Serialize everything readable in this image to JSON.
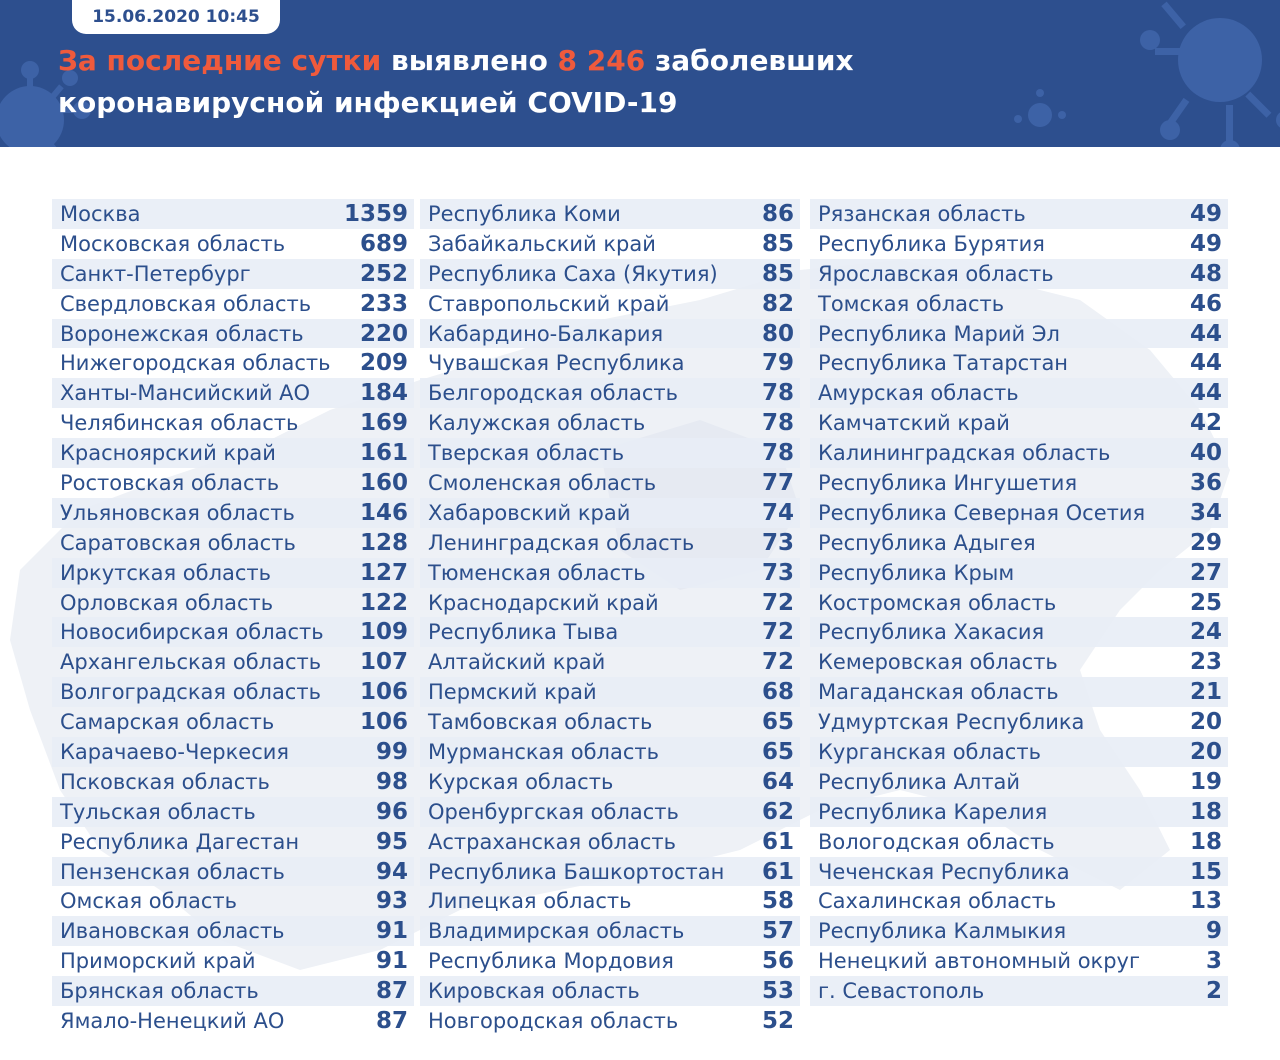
{
  "header": {
    "date": "15.06.2020 10:45",
    "title_accent_1": "За последние сутки",
    "title_part_1": " выявлено ",
    "title_accent_2": "8 246",
    "title_part_2": " заболевших",
    "title_line_2": "коронавирусной инфекцией COVID-19"
  },
  "colors": {
    "header_bg": "#2d4f8e",
    "accent": "#ef5a3c",
    "text": "#2c4f8c",
    "row_stripe": "#e8edf6"
  },
  "columns": [
    [
      {
        "name": "Москва",
        "value": "1359"
      },
      {
        "name": "Московская область",
        "value": "689"
      },
      {
        "name": "Санкт-Петербург",
        "value": "252"
      },
      {
        "name": "Свердловская область",
        "value": "233"
      },
      {
        "name": "Воронежская область",
        "value": "220"
      },
      {
        "name": "Нижегородская область",
        "value": "209"
      },
      {
        "name": "Ханты-Мансийский АО",
        "value": "184"
      },
      {
        "name": "Челябинская область",
        "value": "169"
      },
      {
        "name": "Красноярский край",
        "value": "161"
      },
      {
        "name": "Ростовская область",
        "value": "160"
      },
      {
        "name": "Ульяновская область",
        "value": "146"
      },
      {
        "name": "Саратовская область",
        "value": "128"
      },
      {
        "name": "Иркутская область",
        "value": "127"
      },
      {
        "name": "Орловская область",
        "value": "122"
      },
      {
        "name": "Новосибирская область",
        "value": "109"
      },
      {
        "name": "Архангельская область",
        "value": "107"
      },
      {
        "name": "Волгоградская область",
        "value": "106"
      },
      {
        "name": "Самарская область",
        "value": "106"
      },
      {
        "name": "Карачаево-Черкесия",
        "value": "99"
      },
      {
        "name": "Псковская область",
        "value": "98"
      },
      {
        "name": "Тульская область",
        "value": "96"
      },
      {
        "name": "Республика Дагестан",
        "value": "95"
      },
      {
        "name": "Пензенская область",
        "value": "94"
      },
      {
        "name": "Омская область",
        "value": "93"
      },
      {
        "name": "Ивановская область",
        "value": "91"
      },
      {
        "name": "Приморский край",
        "value": "91"
      },
      {
        "name": "Брянская область",
        "value": "87"
      },
      {
        "name": "Ямало-Ненецкий АО",
        "value": "87"
      }
    ],
    [
      {
        "name": "Республика Коми",
        "value": "86"
      },
      {
        "name": "Забайкальский край",
        "value": "85"
      },
      {
        "name": "Республика Саха (Якутия)",
        "value": "85"
      },
      {
        "name": "Ставропольский край",
        "value": "82"
      },
      {
        "name": "Кабардино-Балкария",
        "value": "80"
      },
      {
        "name": "Чувашская Республика",
        "value": "79"
      },
      {
        "name": "Белгородская область",
        "value": "78"
      },
      {
        "name": "Калужская область",
        "value": "78"
      },
      {
        "name": "Тверская область",
        "value": "78"
      },
      {
        "name": "Смоленская область",
        "value": "77"
      },
      {
        "name": "Хабаровский край",
        "value": "74"
      },
      {
        "name": "Ленинградская область",
        "value": "73"
      },
      {
        "name": "Тюменская область",
        "value": "73"
      },
      {
        "name": "Краснодарский край",
        "value": "72"
      },
      {
        "name": "Республика Тыва",
        "value": "72"
      },
      {
        "name": "Алтайский край",
        "value": "72"
      },
      {
        "name": "Пермский край",
        "value": "68"
      },
      {
        "name": "Тамбовская область",
        "value": "65"
      },
      {
        "name": "Мурманская область",
        "value": "65"
      },
      {
        "name": "Курская область",
        "value": "64"
      },
      {
        "name": "Оренбургская область",
        "value": "62"
      },
      {
        "name": "Астраханская область",
        "value": "61"
      },
      {
        "name": "Республика Башкортостан",
        "value": "61"
      },
      {
        "name": "Липецкая область",
        "value": "58"
      },
      {
        "name": "Владимирская область",
        "value": "57"
      },
      {
        "name": "Республика Мордовия",
        "value": "56"
      },
      {
        "name": "Кировская область",
        "value": "53"
      },
      {
        "name": "Новгородская область",
        "value": "52"
      }
    ],
    [
      {
        "name": "Рязанская область",
        "value": "49"
      },
      {
        "name": "Республика Бурятия",
        "value": "49"
      },
      {
        "name": "Ярославская область",
        "value": "48"
      },
      {
        "name": "Томская область",
        "value": "46"
      },
      {
        "name": "Республика Марий Эл",
        "value": "44"
      },
      {
        "name": "Республика Татарстан",
        "value": "44"
      },
      {
        "name": "Амурская область",
        "value": "44"
      },
      {
        "name": "Камчатский край",
        "value": "42"
      },
      {
        "name": "Калининградская область",
        "value": "40"
      },
      {
        "name": "Республика Ингушетия",
        "value": "36"
      },
      {
        "name": "Республика Северная Осетия",
        "value": "34"
      },
      {
        "name": "Республика Адыгея",
        "value": "29"
      },
      {
        "name": "Республика Крым",
        "value": "27"
      },
      {
        "name": "Костромская область",
        "value": "25"
      },
      {
        "name": "Республика Хакасия",
        "value": "24"
      },
      {
        "name": "Кемеровская область",
        "value": "23"
      },
      {
        "name": "Магаданская область",
        "value": "21"
      },
      {
        "name": "Удмуртская Республика",
        "value": "20"
      },
      {
        "name": "Курганская область",
        "value": "20"
      },
      {
        "name": "Республика Алтай",
        "value": "19"
      },
      {
        "name": "Республика Карелия",
        "value": "18"
      },
      {
        "name": "Вологодская область",
        "value": "18"
      },
      {
        "name": "Чеченская Республика",
        "value": "15"
      },
      {
        "name": "Сахалинская область",
        "value": "13"
      },
      {
        "name": "Республика Калмыкия",
        "value": "9"
      },
      {
        "name": "Ненецкий автономный округ",
        "value": "3"
      },
      {
        "name": "г. Севастополь",
        "value": "2"
      }
    ]
  ]
}
